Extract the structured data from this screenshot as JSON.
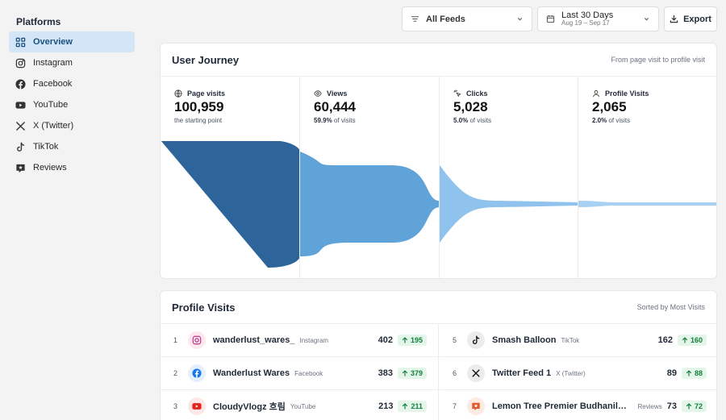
{
  "sidebar": {
    "title": "Platforms",
    "items": [
      {
        "label": "Overview",
        "icon": "grid-icon",
        "active": true
      },
      {
        "label": "Instagram",
        "icon": "instagram-icon"
      },
      {
        "label": "Facebook",
        "icon": "facebook-icon"
      },
      {
        "label": "YouTube",
        "icon": "youtube-icon"
      },
      {
        "label": "X (Twitter)",
        "icon": "x-icon"
      },
      {
        "label": "TikTok",
        "icon": "tiktok-icon"
      },
      {
        "label": "Reviews",
        "icon": "reviews-icon"
      }
    ]
  },
  "controls": {
    "feeds_label": "All Feeds",
    "date_label": "Last 30 Days",
    "date_range": "Aug 19 – Sep 17",
    "export_label": "Export"
  },
  "journey": {
    "title": "User Journey",
    "subtitle": "From page visit to profile visit",
    "stages": [
      {
        "label": "Page visits",
        "icon": "globe-icon",
        "value": "100,959",
        "pct": "",
        "note": "the starting point",
        "raw": 100959
      },
      {
        "label": "Views",
        "icon": "eye-icon",
        "value": "60,444",
        "pct": "59.9%",
        "note": "of visits",
        "raw": 60444
      },
      {
        "label": "Clicks",
        "icon": "click-icon",
        "value": "5,028",
        "pct": "5.0%",
        "note": "of visits",
        "raw": 5028
      },
      {
        "label": "Profile Visits",
        "icon": "user-icon",
        "value": "2,065",
        "pct": "2.0%",
        "note": "of visits",
        "raw": 2065
      }
    ],
    "colors": {
      "stage1": "#2d6499",
      "stage2": "#5fa3d9",
      "stage3": "#8fc2ed",
      "stage4": "#a8d0f2"
    }
  },
  "visits": {
    "title": "Profile Visits",
    "subtitle": "Sorted by Most Visits",
    "rows": [
      {
        "rank": "1",
        "name": "wanderlust_wares_",
        "platform": "Instagram",
        "count": "402",
        "delta": "195",
        "icon": "instagram-icon"
      },
      {
        "rank": "2",
        "name": "Wanderlust Wares",
        "platform": "Facebook",
        "count": "383",
        "delta": "379",
        "icon": "facebook-icon"
      },
      {
        "rank": "3",
        "name": "CloudyVlogz 흐림",
        "platform": "YouTube",
        "count": "213",
        "delta": "211",
        "icon": "youtube-icon"
      },
      {
        "rank": "5",
        "name": "Smash Balloon",
        "platform": "TikTok",
        "count": "162",
        "delta": "160",
        "icon": "tiktok-icon"
      },
      {
        "rank": "6",
        "name": "Twitter Feed 1",
        "platform": "X (Twitter)",
        "count": "89",
        "delta": "88",
        "icon": "x-icon"
      },
      {
        "rank": "7",
        "name": "Lemon Tree Premier Budhanilka...",
        "platform": "Reviews",
        "count": "73",
        "delta": "72",
        "icon": "reviews-icon"
      }
    ]
  }
}
